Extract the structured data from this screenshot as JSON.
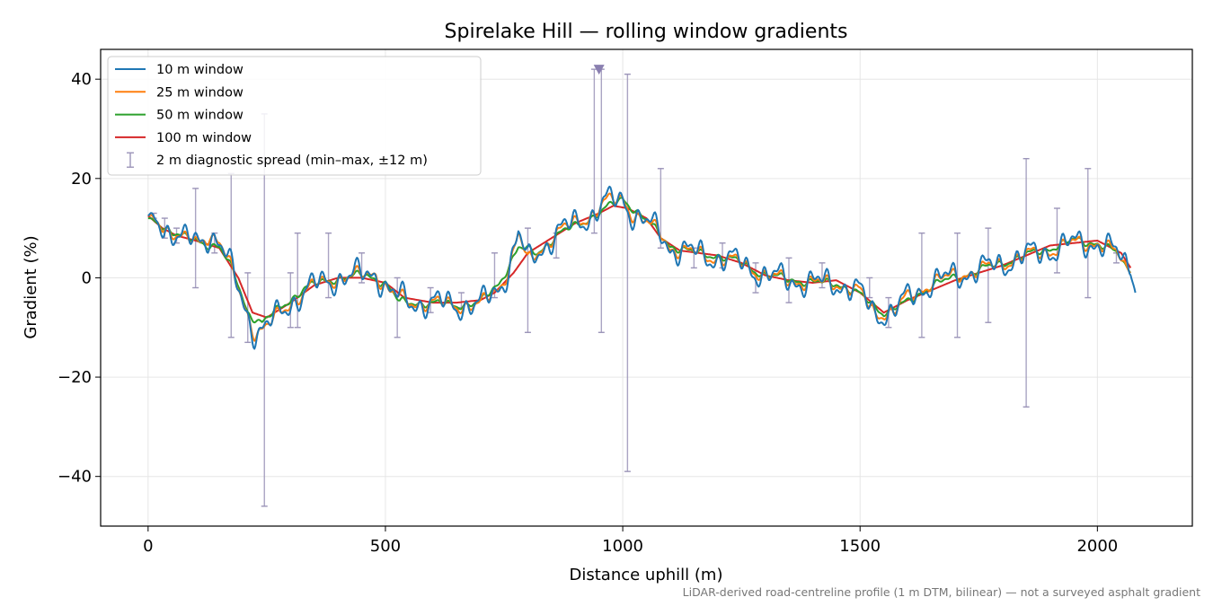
{
  "chart_data": {
    "type": "line",
    "title": "Spirelake Hill — rolling window gradients",
    "xlabel": "Distance uphill (m)",
    "ylabel": "Gradient (%)",
    "footnote": "LiDAR-derived road-centreline profile (1 m DTM, bilinear) — not a surveyed asphalt gradient",
    "xlim": [
      -100,
      2200
    ],
    "ylim": [
      -50,
      46
    ],
    "xticks": [
      0,
      500,
      1000,
      1500,
      2000
    ],
    "yticks": [
      -40,
      -20,
      0,
      20,
      40
    ],
    "yticklabels": [
      "−40",
      "−20",
      "0",
      "20",
      "40"
    ],
    "grid": true,
    "legend_position": "top-left",
    "series": [
      {
        "name": "10 m window",
        "color": "#1f77b4",
        "roughness": 1.0,
        "points": [
          [
            0,
            12.5
          ],
          [
            40,
            10
          ],
          [
            80,
            7.5
          ],
          [
            110,
            7
          ],
          [
            130,
            9
          ],
          [
            150,
            7.5
          ],
          [
            170,
            3
          ],
          [
            200,
            -5
          ],
          [
            225,
            -11
          ],
          [
            250,
            -10
          ],
          [
            300,
            -5
          ],
          [
            350,
            -1.5
          ],
          [
            400,
            0
          ],
          [
            450,
            0.5
          ],
          [
            480,
            1
          ],
          [
            510,
            -3
          ],
          [
            550,
            -5
          ],
          [
            600,
            -5
          ],
          [
            650,
            -5.5
          ],
          [
            700,
            -5.5
          ],
          [
            740,
            -2
          ],
          [
            760,
            2
          ],
          [
            780,
            9
          ],
          [
            800,
            3
          ],
          [
            820,
            5
          ],
          [
            860,
            9
          ],
          [
            900,
            11
          ],
          [
            940,
            13
          ],
          [
            960,
            15
          ],
          [
            1000,
            16
          ],
          [
            1020,
            13
          ],
          [
            1050,
            11
          ],
          [
            1080,
            9
          ],
          [
            1100,
            6
          ],
          [
            1150,
            5
          ],
          [
            1200,
            4
          ],
          [
            1250,
            3
          ],
          [
            1300,
            0.5
          ],
          [
            1350,
            -0.5
          ],
          [
            1400,
            -1
          ],
          [
            1450,
            -1
          ],
          [
            1500,
            -3
          ],
          [
            1530,
            -7
          ],
          [
            1570,
            -7
          ],
          [
            1600,
            -4
          ],
          [
            1650,
            -1
          ],
          [
            1700,
            0.5
          ],
          [
            1750,
            1.5
          ],
          [
            1800,
            3
          ],
          [
            1850,
            4.5
          ],
          [
            1900,
            5.5
          ],
          [
            1950,
            7
          ],
          [
            2000,
            7
          ],
          [
            2040,
            5
          ],
          [
            2070,
            2
          ],
          [
            2080,
            -3
          ]
        ]
      },
      {
        "name": "25 m window",
        "color": "#ff7f0e",
        "roughness": 0.55,
        "points": [
          [
            0,
            12.5
          ],
          [
            40,
            10
          ],
          [
            80,
            7.5
          ],
          [
            110,
            7
          ],
          [
            130,
            9
          ],
          [
            150,
            7.5
          ],
          [
            170,
            3
          ],
          [
            200,
            -5
          ],
          [
            225,
            -11
          ],
          [
            250,
            -10
          ],
          [
            300,
            -5
          ],
          [
            350,
            -1.5
          ],
          [
            400,
            0
          ],
          [
            450,
            0.5
          ],
          [
            480,
            1
          ],
          [
            510,
            -3
          ],
          [
            550,
            -5
          ],
          [
            600,
            -5
          ],
          [
            650,
            -5.5
          ],
          [
            700,
            -5.5
          ],
          [
            740,
            -2
          ],
          [
            760,
            2
          ],
          [
            780,
            9
          ],
          [
            800,
            3
          ],
          [
            820,
            5
          ],
          [
            860,
            9
          ],
          [
            900,
            11
          ],
          [
            940,
            13
          ],
          [
            960,
            15
          ],
          [
            1000,
            16
          ],
          [
            1020,
            13
          ],
          [
            1050,
            11
          ],
          [
            1080,
            9
          ],
          [
            1100,
            6
          ],
          [
            1150,
            5
          ],
          [
            1200,
            4
          ],
          [
            1250,
            3
          ],
          [
            1300,
            0.5
          ],
          [
            1350,
            -0.5
          ],
          [
            1400,
            -1
          ],
          [
            1450,
            -1
          ],
          [
            1500,
            -3
          ],
          [
            1530,
            -7
          ],
          [
            1570,
            -7
          ],
          [
            1600,
            -4
          ],
          [
            1650,
            -1
          ],
          [
            1700,
            0.5
          ],
          [
            1750,
            1.5
          ],
          [
            1800,
            3
          ],
          [
            1850,
            4.5
          ],
          [
            1900,
            5.5
          ],
          [
            1950,
            7
          ],
          [
            2000,
            7
          ],
          [
            2040,
            5
          ],
          [
            2070,
            1
          ]
        ]
      },
      {
        "name": "50 m window",
        "color": "#2ca02c",
        "roughness": 0.3,
        "points": [
          [
            0,
            12
          ],
          [
            40,
            10
          ],
          [
            80,
            8
          ],
          [
            110,
            7
          ],
          [
            150,
            6.5
          ],
          [
            180,
            1
          ],
          [
            210,
            -7
          ],
          [
            240,
            -9
          ],
          [
            280,
            -6
          ],
          [
            330,
            -2
          ],
          [
            400,
            0
          ],
          [
            460,
            0.5
          ],
          [
            500,
            -1
          ],
          [
            530,
            -5
          ],
          [
            580,
            -5
          ],
          [
            650,
            -5.5
          ],
          [
            700,
            -5
          ],
          [
            740,
            -1
          ],
          [
            780,
            6
          ],
          [
            820,
            5
          ],
          [
            860,
            8.5
          ],
          [
            900,
            10.5
          ],
          [
            950,
            13
          ],
          [
            1000,
            16
          ],
          [
            1050,
            11.5
          ],
          [
            1100,
            6.5
          ],
          [
            1150,
            5
          ],
          [
            1200,
            4.5
          ],
          [
            1250,
            3
          ],
          [
            1300,
            0.5
          ],
          [
            1400,
            -1
          ],
          [
            1450,
            -1
          ],
          [
            1500,
            -3.5
          ],
          [
            1550,
            -7
          ],
          [
            1600,
            -5
          ],
          [
            1650,
            -1.5
          ],
          [
            1700,
            0
          ],
          [
            1750,
            1.5
          ],
          [
            1800,
            3
          ],
          [
            1850,
            4.5
          ],
          [
            1900,
            6
          ],
          [
            1950,
            7.5
          ],
          [
            2000,
            7
          ],
          [
            2040,
            5
          ],
          [
            2070,
            1
          ]
        ]
      },
      {
        "name": "100 m window",
        "color": "#d62728",
        "roughness": 0,
        "points": [
          [
            0,
            12.5
          ],
          [
            30,
            10
          ],
          [
            60,
            8.5
          ],
          [
            100,
            7.5
          ],
          [
            150,
            6
          ],
          [
            190,
            0
          ],
          [
            220,
            -7
          ],
          [
            250,
            -8
          ],
          [
            300,
            -5
          ],
          [
            350,
            -1.5
          ],
          [
            400,
            0
          ],
          [
            450,
            0
          ],
          [
            500,
            -1
          ],
          [
            540,
            -4
          ],
          [
            600,
            -5
          ],
          [
            650,
            -5
          ],
          [
            700,
            -4.5
          ],
          [
            730,
            -3
          ],
          [
            770,
            1
          ],
          [
            800,
            5
          ],
          [
            850,
            8
          ],
          [
            900,
            11
          ],
          [
            950,
            13
          ],
          [
            980,
            14.5
          ],
          [
            1010,
            14
          ],
          [
            1050,
            12
          ],
          [
            1080,
            8
          ],
          [
            1120,
            5.5
          ],
          [
            1200,
            4.5
          ],
          [
            1250,
            3
          ],
          [
            1300,
            0.5
          ],
          [
            1350,
            -0.5
          ],
          [
            1400,
            -1
          ],
          [
            1450,
            -0.5
          ],
          [
            1500,
            -3
          ],
          [
            1550,
            -7
          ],
          [
            1600,
            -4.5
          ],
          [
            1650,
            -2.5
          ],
          [
            1700,
            -0.5
          ],
          [
            1750,
            1
          ],
          [
            1800,
            2.5
          ],
          [
            1850,
            4.5
          ],
          [
            1900,
            6.5
          ],
          [
            1950,
            7
          ],
          [
            2000,
            7.5
          ],
          [
            2050,
            5
          ],
          [
            2070,
            2
          ]
        ]
      }
    ],
    "spread": {
      "name": "2 m diagnostic spread (min–max, ±12 m)",
      "color": "#9b94b8",
      "markers": [
        [
          12,
          12,
          13
        ],
        [
          35,
          8,
          12
        ],
        [
          60,
          7,
          10
        ],
        [
          100,
          -2,
          18
        ],
        [
          140,
          5,
          9
        ],
        [
          175,
          -12,
          21
        ],
        [
          210,
          -13,
          1
        ],
        [
          245,
          -46,
          33
        ],
        [
          300,
          -10,
          1
        ],
        [
          315,
          -10,
          9
        ],
        [
          380,
          -4,
          9
        ],
        [
          450,
          -1,
          5
        ],
        [
          525,
          -12,
          0
        ],
        [
          595,
          -7,
          -2
        ],
        [
          660,
          -6,
          -3
        ],
        [
          730,
          -4,
          5
        ],
        [
          800,
          -11,
          10
        ],
        [
          860,
          4,
          9
        ],
        [
          940,
          9,
          42
        ],
        [
          955,
          -11,
          42
        ],
        [
          1010,
          -39,
          41
        ],
        [
          1080,
          6,
          22
        ],
        [
          1150,
          2,
          6
        ],
        [
          1210,
          2,
          7
        ],
        [
          1280,
          -3,
          3
        ],
        [
          1350,
          -5,
          4
        ],
        [
          1420,
          -2,
          3
        ],
        [
          1520,
          -4,
          0
        ],
        [
          1560,
          -10,
          -4
        ],
        [
          1630,
          -12,
          9
        ],
        [
          1705,
          -12,
          9
        ],
        [
          1770,
          -9,
          10
        ],
        [
          1850,
          -26,
          24
        ],
        [
          1915,
          1,
          14
        ],
        [
          1980,
          -4,
          22
        ],
        [
          2040,
          3,
          5
        ]
      ],
      "triangle": [
        950,
        42
      ]
    }
  }
}
